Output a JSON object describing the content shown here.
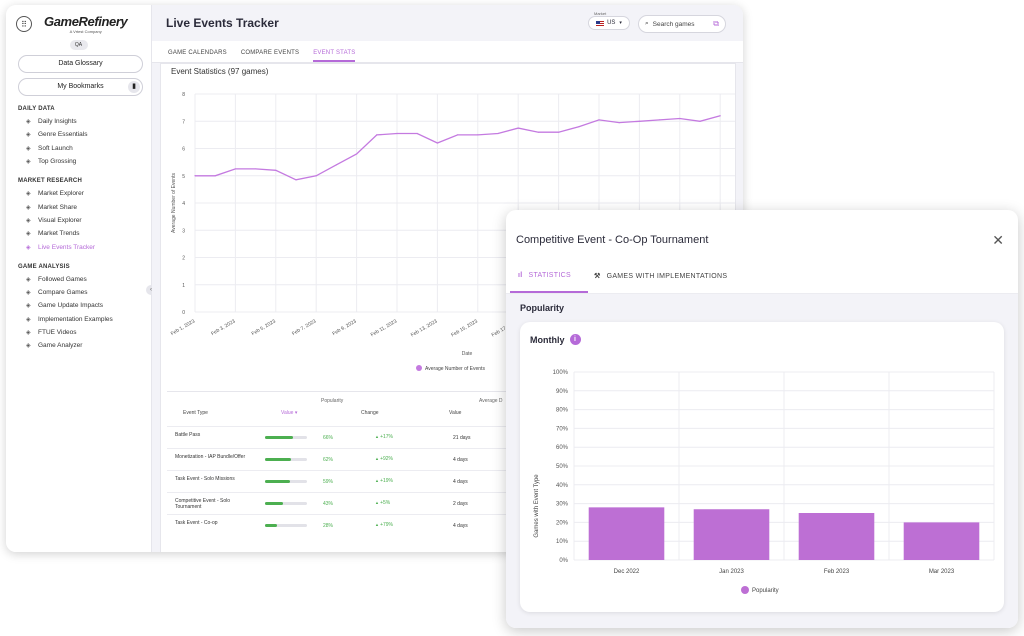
{
  "sidebar": {
    "logo_name": "GameRefinery",
    "logo_sub": "A Vrtest Company",
    "env_badge": "QA",
    "data_glossary": "Data Glossary",
    "my_bookmarks": "My Bookmarks",
    "sections": [
      {
        "title": "DAILY DATA",
        "items": [
          {
            "label": "Daily Insights",
            "icon": "daily-insights-icon"
          },
          {
            "label": "Genre Essentials",
            "icon": "genre-essentials-icon"
          },
          {
            "label": "Soft Launch",
            "icon": "soft-launch-icon"
          },
          {
            "label": "Top Grossing",
            "icon": "top-grossing-icon"
          }
        ]
      },
      {
        "title": "MARKET RESEARCH",
        "items": [
          {
            "label": "Market Explorer",
            "icon": "market-explorer-icon"
          },
          {
            "label": "Market Share",
            "icon": "market-share-icon"
          },
          {
            "label": "Visual Explorer",
            "icon": "visual-explorer-icon"
          },
          {
            "label": "Market Trends",
            "icon": "market-trends-icon"
          },
          {
            "label": "Live Events Tracker",
            "icon": "live-events-icon",
            "active": true
          }
        ]
      },
      {
        "title": "GAME ANALYSIS",
        "items": [
          {
            "label": "Followed Games",
            "icon": "followed-games-icon"
          },
          {
            "label": "Compare Games",
            "icon": "compare-games-icon"
          },
          {
            "label": "Game Update Impacts",
            "icon": "game-update-icon"
          },
          {
            "label": "Implementation Examples",
            "icon": "implementation-icon"
          },
          {
            "label": "FTUE Videos",
            "icon": "video-icon"
          },
          {
            "label": "Game Analyzer",
            "icon": "game-analyzer-icon"
          }
        ]
      }
    ]
  },
  "header": {
    "title": "Live Events Tracker",
    "market_label": "Market",
    "market_value": "US",
    "search_placeholder": "Search games"
  },
  "tabs": [
    "GAME CALENDARS",
    "COMPARE EVENTS",
    "EVENT STATS"
  ],
  "active_tab": 2,
  "event_chart": {
    "title": "Event Statistics (97 games)",
    "ylabel": "Average Number of Events",
    "xlabel": "Date",
    "legend": "Average Number of Events",
    "chart_data": {
      "type": "line",
      "x": [
        "Feb 1, 2023",
        "Feb 2, 2023",
        "Feb 3, 2023",
        "Feb 4, 2023",
        "Feb 5, 2023",
        "Feb 6, 2023",
        "Feb 7, 2023",
        "Feb 8, 2023",
        "Feb 9, 2023",
        "Feb 10, 2023",
        "Feb 11, 2023",
        "Feb 12, 2023",
        "Feb 13, 2023",
        "Feb 14, 2023",
        "Feb 15, 2023",
        "Feb 16, 2023",
        "Feb 17, 2023",
        "Feb 18, 2023",
        "Feb 19, 2023",
        "Feb 20, 2023",
        "Feb 21, 2023",
        "Feb 22, 2023",
        "Feb 23, 2023",
        "Feb 24, 2023",
        "Feb 25, 2023",
        "Feb 26, 2023",
        "Feb 27, 2023"
      ],
      "tick_labels": [
        "Feb 1, 2023",
        "Feb 3, 2023",
        "Feb 5, 2023",
        "Feb 7, 2023",
        "Feb 9, 2023",
        "Feb 11, 2023",
        "Feb 13, 2023",
        "Feb 15, 2023",
        "Feb 17, 2023"
      ],
      "values": [
        5.0,
        5.0,
        5.25,
        5.25,
        5.2,
        4.85,
        5.0,
        5.4,
        5.8,
        6.5,
        6.55,
        6.55,
        6.2,
        6.5,
        6.5,
        6.55,
        6.75,
        6.6,
        6.6,
        6.8,
        7.05,
        6.95,
        7.0,
        7.05,
        7.1,
        7.0,
        7.2
      ],
      "ylim": [
        0,
        8
      ],
      "yticks": [
        0,
        1,
        2,
        3,
        4,
        5,
        6,
        7,
        8
      ],
      "color": "#c47ae0"
    }
  },
  "table": {
    "group_popularity": "Popularity",
    "group_average": "Average D",
    "col_event_type": "Event Type",
    "col_value": "Value",
    "col_change": "Change",
    "col_value2": "Value",
    "rows": [
      {
        "event": "Battle Pass",
        "pop": "66%",
        "pop_fraction": 0.66,
        "change": "+17%",
        "avg": "21 days"
      },
      {
        "event": "Monetization - IAP Bundle/Offer",
        "pop": "62%",
        "pop_fraction": 0.62,
        "change": "+92%",
        "avg": "4 days"
      },
      {
        "event": "Task Event - Solo Missions",
        "pop": "59%",
        "pop_fraction": 0.59,
        "change": "+19%",
        "avg": "4 days"
      },
      {
        "event": "Competitive Event - Solo Tournament",
        "pop": "43%",
        "pop_fraction": 0.43,
        "change": "+5%",
        "avg": "2 days"
      },
      {
        "event": "Task Event - Co-op",
        "pop": "28%",
        "pop_fraction": 0.28,
        "change": "+79%",
        "avg": "4 days"
      }
    ]
  },
  "panel": {
    "title": "Competitive Event - Co-Op Tournament",
    "tab_statistics": "STATISTICS",
    "tab_games": "GAMES WITH IMPLEMENTATIONS",
    "section_title": "Popularity",
    "card_title": "Monthly",
    "chart_data": {
      "type": "bar",
      "categories": [
        "Dec 2022",
        "Jan 2023",
        "Feb 2023",
        "Mar 2023"
      ],
      "series": [
        {
          "name": "Popularity",
          "values": [
            28,
            27,
            25,
            20
          ]
        }
      ],
      "ylabel": "Games with Event Type",
      "ylim": [
        0,
        100
      ],
      "yticks": [
        "0%",
        "10%",
        "20%",
        "30%",
        "40%",
        "50%",
        "60%",
        "70%",
        "80%",
        "90%",
        "100%"
      ],
      "legend": "Popularity",
      "color": "#bd6fd4"
    }
  },
  "colors": {
    "accent": "#b56ad8",
    "positive": "#4caf50"
  }
}
